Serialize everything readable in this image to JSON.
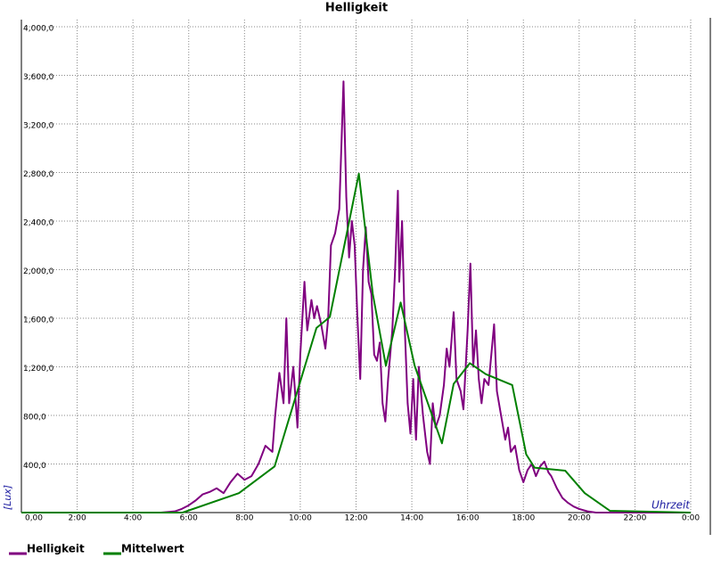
{
  "chart_data": {
    "type": "line",
    "title": "Helligkeit",
    "y_label": "[Lux]",
    "x_label": "Uhrzeit",
    "grid": true,
    "xlim": [
      0,
      24
    ],
    "ylim": [
      0,
      4000
    ],
    "xticks": [
      {
        "value": 0,
        "label": "0,00"
      },
      {
        "value": 2,
        "label": "2:00"
      },
      {
        "value": 4,
        "label": "4:00"
      },
      {
        "value": 6,
        "label": "6:00"
      },
      {
        "value": 8,
        "label": "8:00"
      },
      {
        "value": 10,
        "label": "10:00"
      },
      {
        "value": 12,
        "label": "12:00"
      },
      {
        "value": 14,
        "label": "14:00"
      },
      {
        "value": 16,
        "label": "16:00"
      },
      {
        "value": 18,
        "label": "18:00"
      },
      {
        "value": 20,
        "label": "20:00"
      },
      {
        "value": 22,
        "label": "22:00"
      },
      {
        "value": 24,
        "label": "0:00"
      }
    ],
    "yticks": [
      {
        "value": 400,
        "label": "400,0"
      },
      {
        "value": 800,
        "label": "800,0"
      },
      {
        "value": 1200,
        "label": "1,200,0"
      },
      {
        "value": 1600,
        "label": "1,600,0"
      },
      {
        "value": 2000,
        "label": "2,000,0"
      },
      {
        "value": 2400,
        "label": "2,400,0"
      },
      {
        "value": 2800,
        "label": "2,800,0"
      },
      {
        "value": 3200,
        "label": "3,200,0"
      },
      {
        "value": 3600,
        "label": "3,600,0"
      },
      {
        "value": 4000,
        "label": "4,000,0"
      }
    ],
    "series": [
      {
        "name": "Helligkeit",
        "color": "#800080",
        "x": [
          0,
          5,
          5.5,
          5.75,
          6,
          6.25,
          6.5,
          6.75,
          7,
          7.25,
          7.5,
          7.75,
          8,
          8.25,
          8.5,
          8.75,
          9,
          9.1,
          9.25,
          9.4,
          9.5,
          9.6,
          9.75,
          9.9,
          10,
          10.15,
          10.25,
          10.4,
          10.5,
          10.6,
          10.75,
          10.9,
          11,
          11.1,
          11.25,
          11.4,
          11.5,
          11.55,
          11.65,
          11.75,
          11.85,
          11.95,
          12.05,
          12.15,
          12.25,
          12.35,
          12.45,
          12.55,
          12.65,
          12.75,
          12.85,
          12.95,
          13.05,
          13.15,
          13.3,
          13.4,
          13.5,
          13.55,
          13.65,
          13.75,
          13.85,
          13.95,
          14.05,
          14.15,
          14.25,
          14.4,
          14.55,
          14.65,
          14.75,
          14.85,
          15,
          15.15,
          15.25,
          15.35,
          15.5,
          15.6,
          15.75,
          15.85,
          16,
          16.1,
          16.2,
          16.3,
          16.4,
          16.5,
          16.6,
          16.75,
          16.85,
          16.95,
          17.05,
          17.2,
          17.35,
          17.45,
          17.55,
          17.7,
          17.85,
          18,
          18.15,
          18.3,
          18.45,
          18.6,
          18.75,
          18.9,
          19,
          19.2,
          19.4,
          19.6,
          19.8,
          20,
          20.3,
          20.6,
          24
        ],
        "values": [
          0,
          0,
          10,
          30,
          60,
          100,
          150,
          170,
          200,
          160,
          250,
          320,
          270,
          300,
          400,
          550,
          500,
          800,
          1150,
          900,
          1600,
          900,
          1200,
          700,
          1300,
          1900,
          1500,
          1750,
          1600,
          1700,
          1550,
          1350,
          1600,
          2200,
          2300,
          2500,
          3200,
          3550,
          2600,
          2100,
          2400,
          2200,
          1600,
          1100,
          2000,
          2350,
          1900,
          1800,
          1300,
          1250,
          1400,
          900,
          750,
          1100,
          1500,
          2000,
          2650,
          1900,
          2400,
          1500,
          900,
          650,
          1100,
          600,
          1200,
          800,
          500,
          400,
          900,
          700,
          800,
          1050,
          1350,
          1200,
          1650,
          1100,
          1000,
          850,
          1500,
          2050,
          1200,
          1500,
          1100,
          900,
          1100,
          1050,
          1300,
          1550,
          1000,
          800,
          600,
          700,
          500,
          550,
          350,
          250,
          350,
          400,
          300,
          380,
          420,
          330,
          300,
          200,
          120,
          80,
          50,
          30,
          10,
          0,
          0
        ]
      },
      {
        "name": "Mittelwert",
        "color": "#008000",
        "x": [
          0,
          5.78,
          7.8,
          9.08,
          10.58,
          11.06,
          12.1,
          12.6,
          13.07,
          13.6,
          14.1,
          15.08,
          15.5,
          16.08,
          16.65,
          17.6,
          18.1,
          18.4,
          19.5,
          20.2,
          21.1,
          24
        ],
        "values": [
          0,
          0,
          160,
          380,
          1520,
          1610,
          2790,
          1800,
          1210,
          1730,
          1210,
          570,
          1060,
          1230,
          1140,
          1050,
          480,
          370,
          345,
          160,
          15,
          0
        ]
      }
    ]
  }
}
